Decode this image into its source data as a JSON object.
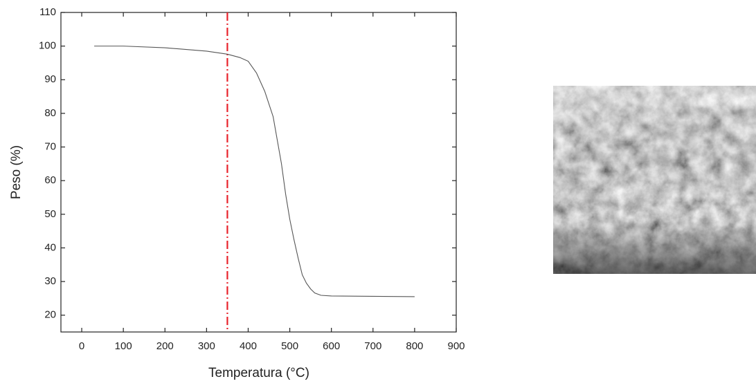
{
  "chart_data": {
    "type": "line",
    "xlabel": "Temperatura (°C)",
    "ylabel": "Peso (%)",
    "x": [
      30,
      100,
      200,
      300,
      350,
      380,
      400,
      420,
      440,
      460,
      470,
      480,
      490,
      500,
      510,
      520,
      530,
      540,
      550,
      560,
      575,
      600,
      700,
      800
    ],
    "values": [
      100,
      100,
      99.5,
      98.5,
      97.6,
      96.6,
      95.5,
      92,
      86.5,
      79,
      72,
      65,
      56,
      48.5,
      42.5,
      37,
      32,
      29.5,
      27.8,
      26.6,
      25.9,
      25.7,
      25.6,
      25.5
    ],
    "color": "#555555",
    "reference_lines": [
      {
        "x": 350,
        "color": "#e8212a",
        "style": "dashdot"
      }
    ],
    "xlim": [
      -50,
      900
    ],
    "xticks": [
      0,
      100,
      200,
      300,
      400,
      500,
      600,
      700,
      800,
      900
    ],
    "ylim": [
      15,
      110
    ],
    "yticks": [
      20,
      30,
      40,
      50,
      60,
      70,
      80,
      90,
      100,
      110
    ],
    "grid": false
  }
}
